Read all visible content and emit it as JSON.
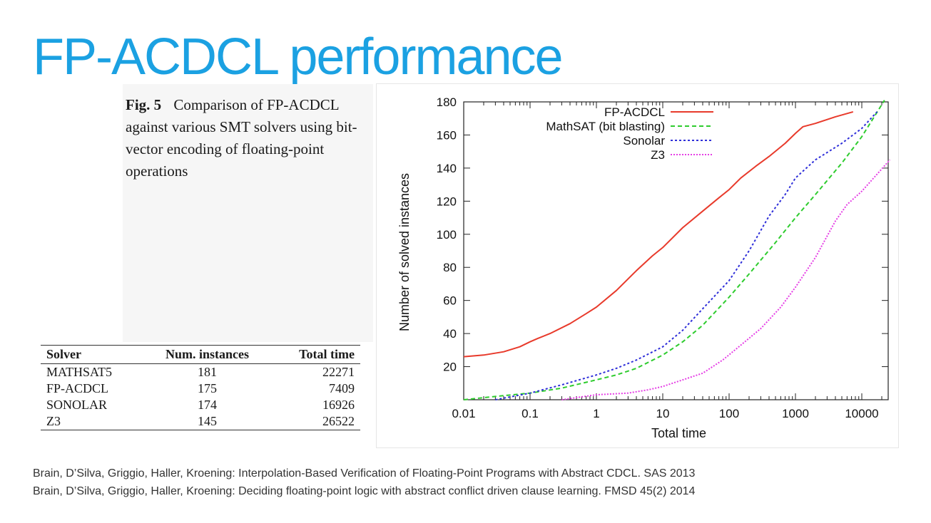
{
  "slide": {
    "title": "FP-ACDCL performance",
    "title_color": "#1ba1e2"
  },
  "caption": {
    "fig_label": "Fig. 5",
    "text_lead": "Comparison of",
    "tool_name": "FP-ACDCL",
    "text_rest": "against various SMT solvers using bit-vector encoding of floating-point operations"
  },
  "table": {
    "headers": [
      "Solver",
      "Num. instances",
      "Total time"
    ],
    "rows": [
      [
        "MATHSAT5",
        "181",
        "22271"
      ],
      [
        "FP-ACDCL",
        "175",
        "7409"
      ],
      [
        "SONOLAR",
        "174",
        "16926"
      ],
      [
        "Z3",
        "145",
        "26522"
      ]
    ]
  },
  "chart_data": {
    "type": "line",
    "title": "",
    "xlabel": "Total time",
    "ylabel": "Number of solved instances",
    "xscale": "log",
    "xlim": [
      0.01,
      25000
    ],
    "ylim": [
      0,
      180
    ],
    "xticks": [
      0.01,
      0.1,
      1,
      10,
      100,
      1000,
      10000
    ],
    "xtick_labels": [
      "0.01",
      "0.1",
      "1",
      "10",
      "100",
      "1000",
      "10000"
    ],
    "yticks": [
      20,
      40,
      60,
      80,
      100,
      120,
      140,
      160,
      180
    ],
    "ytick_labels": [
      "20",
      "40",
      "60",
      "80",
      "100",
      "120",
      "140",
      "160",
      "180"
    ],
    "grid": false,
    "legend_position": "top-right",
    "series": [
      {
        "name": "FP-ACDCL",
        "color": "#e83a2b",
        "dash": "solid",
        "x": [
          0.01,
          0.02,
          0.04,
          0.07,
          0.1,
          0.13,
          0.2,
          0.4,
          0.7,
          1,
          2,
          4,
          7,
          10,
          20,
          40,
          70,
          100,
          150,
          250,
          400,
          700,
          1000,
          1300,
          2000,
          4000,
          7400
        ],
        "y": [
          26,
          27,
          29,
          32,
          35,
          37,
          40,
          46,
          52,
          56,
          66,
          78,
          87,
          92,
          104,
          114,
          122,
          127,
          134,
          141,
          147,
          155,
          161,
          165,
          167,
          171,
          174
        ]
      },
      {
        "name": "MathSAT (bit blasting)",
        "color": "#2ecc2e",
        "dash": "6,4",
        "x": [
          0.01,
          0.03,
          0.1,
          0.3,
          1,
          2,
          4,
          10,
          20,
          40,
          100,
          200,
          500,
          1000,
          2000,
          5000,
          10000,
          22000
        ],
        "y": [
          0,
          2,
          4,
          7,
          12,
          15,
          19,
          27,
          35,
          45,
          62,
          76,
          95,
          110,
          124,
          143,
          159,
          181
        ]
      },
      {
        "name": "Sonolar",
        "color": "#2f2fd9",
        "dash": "3,3",
        "x": [
          0.03,
          0.1,
          0.3,
          1,
          2,
          4,
          10,
          20,
          40,
          100,
          200,
          400,
          700,
          1000,
          2000,
          5000,
          10000,
          17000
        ],
        "y": [
          0,
          4,
          9,
          15,
          19,
          24,
          32,
          42,
          55,
          72,
          90,
          111,
          124,
          134,
          145,
          155,
          164,
          174
        ]
      },
      {
        "name": "Z3",
        "color": "#e53ee5",
        "dash": "2,2",
        "x": [
          0.3,
          1,
          3,
          6,
          10,
          20,
          40,
          80,
          150,
          300,
          600,
          1000,
          2000,
          4000,
          6000,
          10000,
          26500
        ],
        "y": [
          0,
          3,
          4,
          6,
          8,
          12,
          16,
          24,
          33,
          43,
          56,
          68,
          86,
          108,
          118,
          126,
          145
        ]
      }
    ]
  },
  "references": [
    "Brain, D’Silva, Griggio, Haller, Kroening: Interpolation-Based Verification of Floating-Point Programs with Abstract CDCL. SAS 2013",
    "Brain, D’Silva, Griggio, Haller, Kroening: Deciding floating-point logic with abstract conflict driven clause learning. FMSD 45(2) 2014"
  ]
}
